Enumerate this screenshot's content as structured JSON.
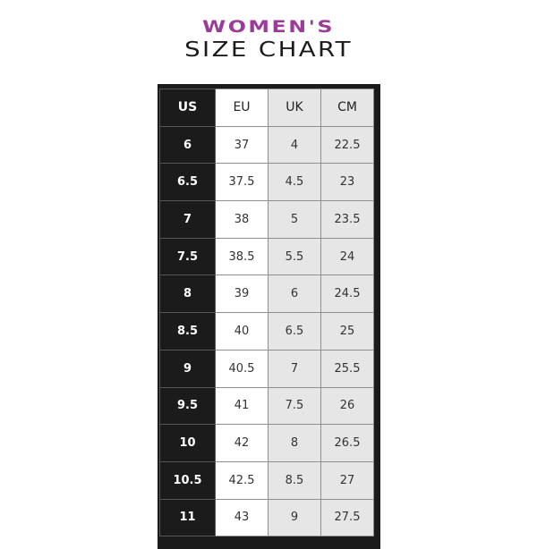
{
  "title_line1": "WOMEN'S",
  "title_line2": "SIZE CHART",
  "colors": {
    "accent": "#9a3c98",
    "dark": "#1b1b1b",
    "gray": "#e6e6e6"
  },
  "headers": [
    "US",
    "EU",
    "UK",
    "CM"
  ],
  "rows": [
    [
      "6",
      "37",
      "4",
      "22.5"
    ],
    [
      "6.5",
      "37.5",
      "4.5",
      "23"
    ],
    [
      "7",
      "38",
      "5",
      "23.5"
    ],
    [
      "7.5",
      "38.5",
      "5.5",
      "24"
    ],
    [
      "8",
      "39",
      "6",
      "24.5"
    ],
    [
      "8.5",
      "40",
      "6.5",
      "25"
    ],
    [
      "9",
      "40.5",
      "7",
      "25.5"
    ],
    [
      "9.5",
      "41",
      "7.5",
      "26"
    ],
    [
      "10",
      "42",
      "8",
      "26.5"
    ],
    [
      "10.5",
      "42.5",
      "8.5",
      "27"
    ],
    [
      "11",
      "43",
      "9",
      "27.5"
    ]
  ]
}
